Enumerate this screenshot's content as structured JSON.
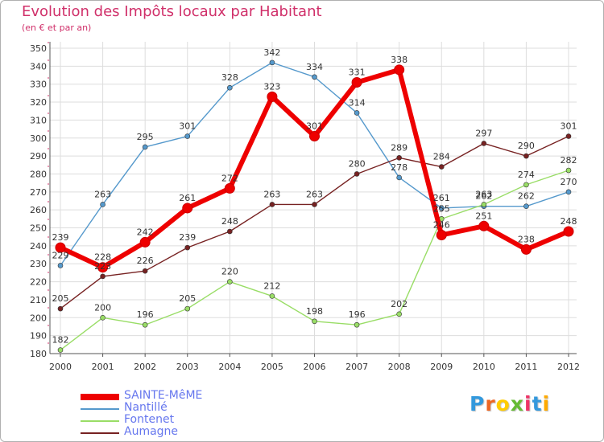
{
  "title": "Evolution des Impôts locaux par Habitant",
  "subtitle": "(en € et par an)",
  "logo": "Proxiti",
  "chart_data": {
    "type": "line",
    "x": [
      "2000",
      "2001",
      "2002",
      "2003",
      "2004",
      "2005",
      "2006",
      "2007",
      "2008",
      "2009",
      "2010",
      "2011",
      "2012"
    ],
    "ylim": [
      180,
      350
    ],
    "yticks": [
      180,
      190,
      200,
      210,
      220,
      230,
      240,
      250,
      260,
      270,
      280,
      290,
      300,
      310,
      320,
      330,
      340,
      350
    ],
    "grid": true,
    "legend_position": "bottom-left",
    "series": [
      {
        "name": "SAINTE-MêME",
        "color": "#ee0000",
        "values": [
          239,
          228,
          242,
          261,
          272,
          323,
          301,
          331,
          338,
          246,
          251,
          238,
          248
        ]
      },
      {
        "name": "Nantillé",
        "color": "#5599cc",
        "values": [
          229,
          263,
          295,
          301,
          328,
          342,
          334,
          314,
          278,
          261,
          262,
          262,
          270
        ]
      },
      {
        "name": "Fontenet",
        "color": "#99dd66",
        "values": [
          182,
          200,
          196,
          205,
          220,
          212,
          198,
          196,
          202,
          255,
          263,
          274,
          282
        ]
      },
      {
        "name": "Aumagne",
        "color": "#772222",
        "values": [
          205,
          223,
          226,
          239,
          248,
          263,
          263,
          280,
          289,
          284,
          297,
          290,
          301
        ]
      }
    ]
  }
}
